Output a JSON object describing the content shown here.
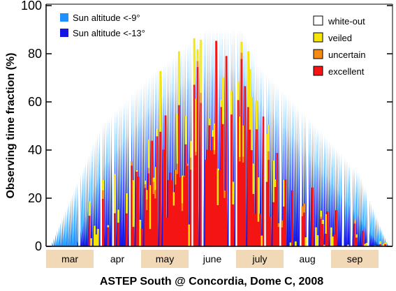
{
  "chart_data": {
    "type": "area",
    "title": "",
    "xlabel": "ASTEP South @ Concordia, Dome C, 2008",
    "ylabel": "Observing time fraction (%)",
    "ylim": [
      0,
      100
    ],
    "yticks": [
      0,
      20,
      40,
      60,
      80,
      100
    ],
    "grid": false,
    "months": [
      "mar",
      "apr",
      "may",
      "june",
      "july",
      "aug",
      "sep"
    ],
    "shaded_months": [
      "mar",
      "may",
      "july",
      "sep"
    ],
    "legend_left": [
      {
        "label": "Sun altitude <-9°",
        "color": "#1e90ff"
      },
      {
        "label": "Sun altitude <-13°",
        "color": "#1414e6"
      }
    ],
    "legend_right": [
      {
        "label": "white-out",
        "color": "#ffffff"
      },
      {
        "label": "veiled",
        "color": "#f5e50a"
      },
      {
        "label": "uncertain",
        "color": "#f58a14"
      },
      {
        "label": "excellent",
        "color": "#f51414"
      }
    ],
    "series": [
      {
        "name": "Sun altitude <-9°",
        "x": [
          0,
          30,
          61,
          91,
          114,
          122,
          152,
          183,
          200
        ],
        "y": [
          0,
          50,
          72,
          90,
          90,
          76,
          54,
          30,
          0
        ]
      },
      {
        "name": "Sun altitude <-13°",
        "x": [
          15,
          30,
          61,
          91,
          114,
          122,
          152,
          183,
          195
        ],
        "y": [
          0,
          32,
          60,
          74,
          74,
          62,
          40,
          12,
          0
        ]
      }
    ],
    "colors": {
      "sun9": "#1e90ff",
      "sun13": "#1414e6",
      "excellent": "#f51414",
      "uncertain": "#f58a14",
      "veiled": "#f5e50a",
      "month_bg": "#f1d9b8"
    }
  }
}
